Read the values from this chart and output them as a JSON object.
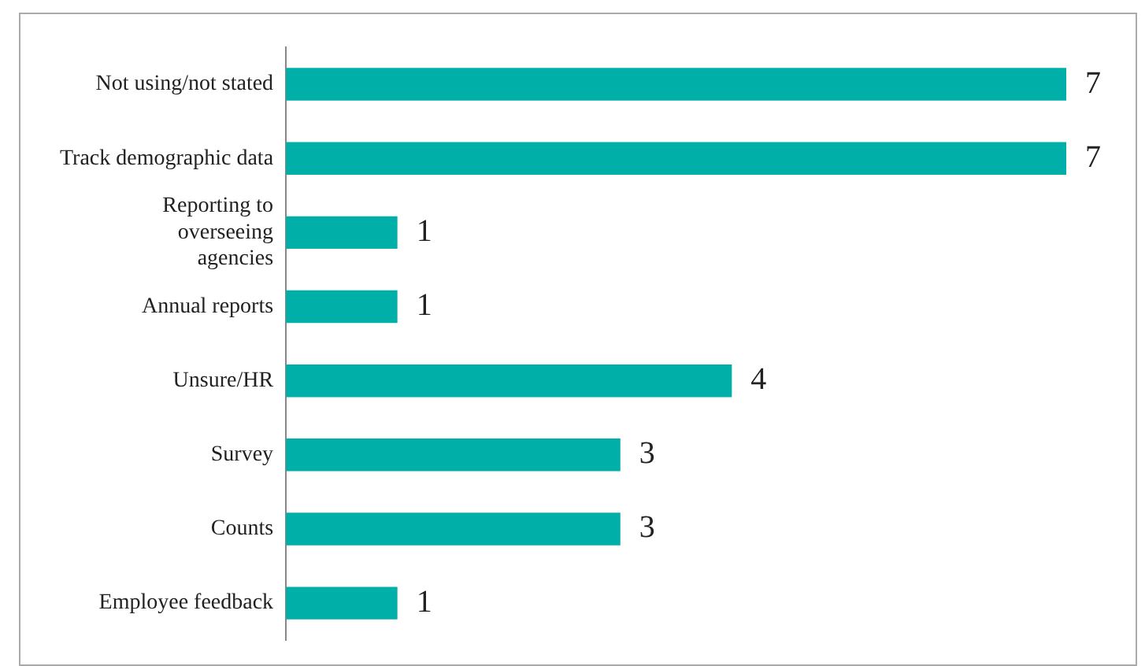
{
  "chart_data": {
    "type": "bar",
    "orientation": "horizontal",
    "categories": [
      "Not using/not stated",
      "Track demographic data",
      "Reporting to overseeing agencies",
      "Annual reports",
      "Unsure/HR",
      "Survey",
      "Counts",
      "Employee feedback"
    ],
    "values": [
      7,
      7,
      1,
      1,
      4,
      3,
      3,
      1
    ],
    "color": "#00b0a8",
    "data_labels": true,
    "grid": false,
    "legend": false,
    "tick_labels": "y"
  }
}
